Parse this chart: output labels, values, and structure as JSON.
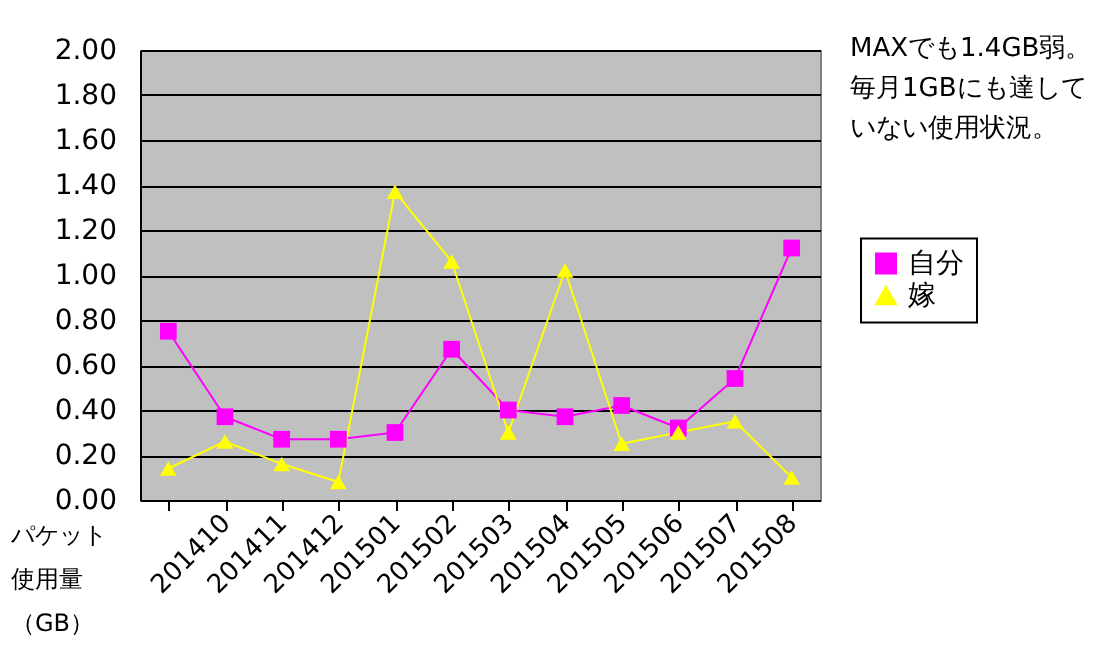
{
  "chart_data": {
    "type": "line",
    "ylabel": "パケット使用量（GB）",
    "categories": [
      null,
      "201410",
      "201411",
      "201412",
      "201501",
      "201502",
      "201503",
      "201504",
      "201505",
      "201506",
      "201507",
      "201508"
    ],
    "series": [
      {
        "name": "自分",
        "color": "#ff00ff",
        "marker": "square",
        "values": [
          0.75,
          0.37,
          0.27,
          0.27,
          0.3,
          0.67,
          0.4,
          0.37,
          0.42,
          0.32,
          0.54,
          1.12
        ]
      },
      {
        "name": "嫁",
        "color": "#ffff00",
        "marker": "triangle",
        "values": [
          0.14,
          0.26,
          0.16,
          0.08,
          1.37,
          1.06,
          0.3,
          1.02,
          0.25,
          0.3,
          0.35,
          0.1
        ]
      }
    ],
    "ylim": [
      0,
      2
    ],
    "yticks": [
      {
        "value": 0,
        "label": "0.00"
      },
      {
        "value": 0.2,
        "label": "0.20"
      },
      {
        "value": 0.4,
        "label": "0.40"
      },
      {
        "value": 0.6,
        "label": "0.60"
      },
      {
        "value": 0.8,
        "label": "0.80"
      },
      {
        "value": 1.0,
        "label": "1.00"
      },
      {
        "value": 1.2,
        "label": "1.20"
      },
      {
        "value": 1.4,
        "label": "1.40"
      },
      {
        "value": 1.6,
        "label": "1.60"
      },
      {
        "value": 1.8,
        "label": "1.80"
      },
      {
        "value": 2.0,
        "label": "2.00"
      }
    ],
    "grid": "y",
    "legend": "right",
    "annotations": [
      "MAXでも1.4GB弱。毎月1GBにも達していない使用状況。"
    ]
  }
}
